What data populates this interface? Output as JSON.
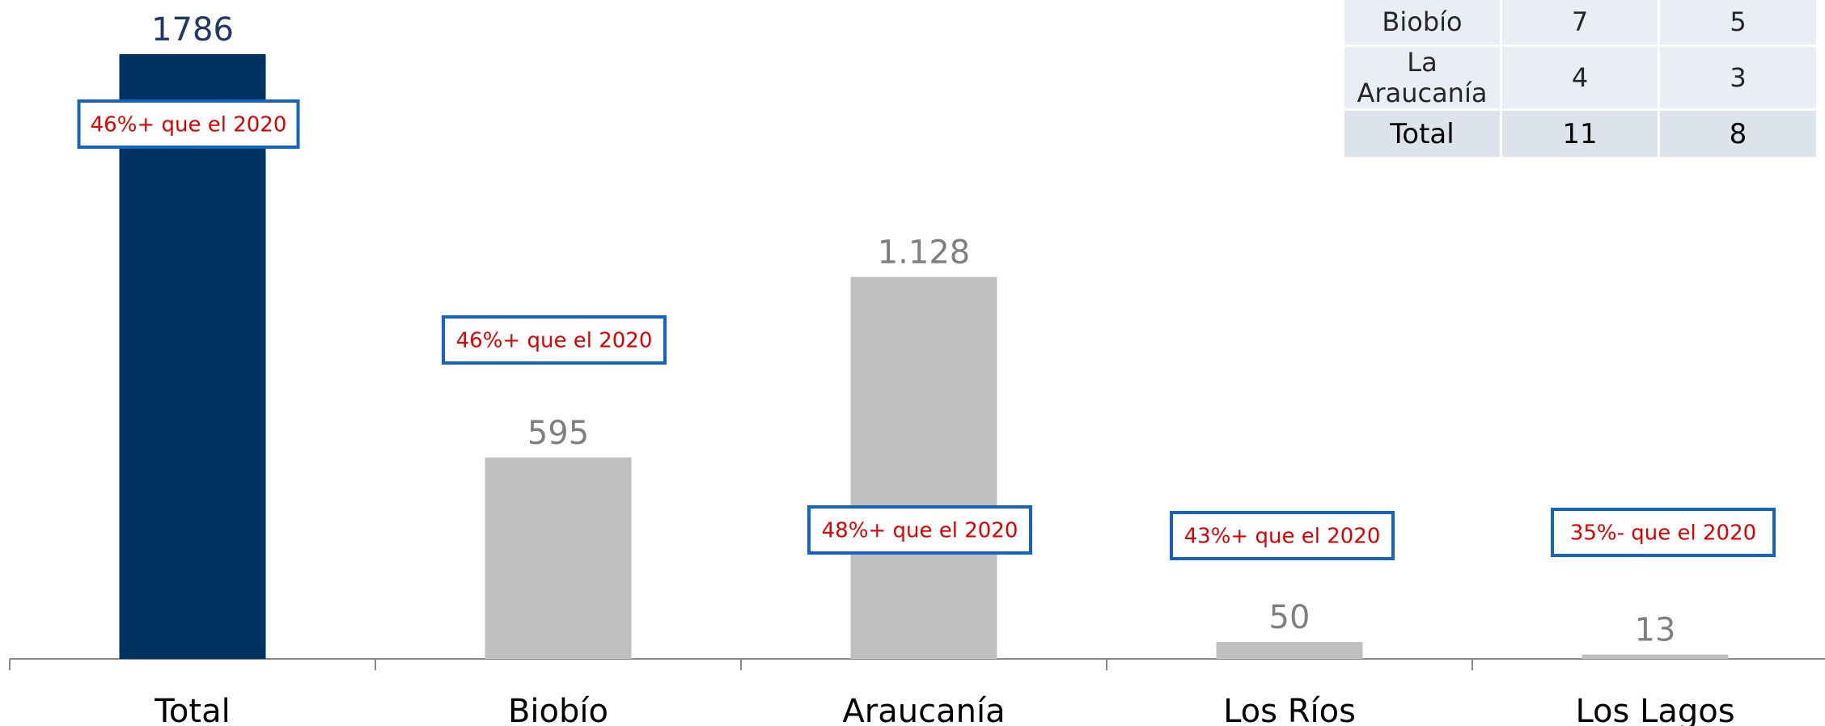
{
  "colors": {
    "highlight_bar": "#003361",
    "bar": "#bfbfbf",
    "highlight_value": "#1f3864",
    "value_label": "#7f7f7f",
    "axis": "#888888",
    "note_border": "#1565c0",
    "note_text": "#e00000"
  },
  "chart_data": {
    "type": "bar",
    "categories": [
      "Total",
      "Biobío",
      "Araucanía",
      "Los Ríos",
      "Los Lagos"
    ],
    "values": [
      1786,
      595,
      1128,
      50,
      13
    ],
    "value_labels": [
      "1786",
      "595",
      "1.128",
      "50",
      "13"
    ],
    "highlight_index": 0,
    "ylim": [
      0,
      1800
    ],
    "grid": false,
    "title": "",
    "xlabel": "",
    "ylabel": "",
    "annotations": [
      "46%+ que el 2020",
      "46%+ que el 2020",
      "48%+ que el 2020",
      "43%+ que el 2020",
      "35%- que el 2020"
    ]
  },
  "table": {
    "rows": [
      [
        "Biobío",
        "7",
        "5"
      ],
      [
        "La Araucanía",
        "4",
        "3"
      ]
    ],
    "total_row": [
      "Total",
      "11",
      "8"
    ]
  }
}
